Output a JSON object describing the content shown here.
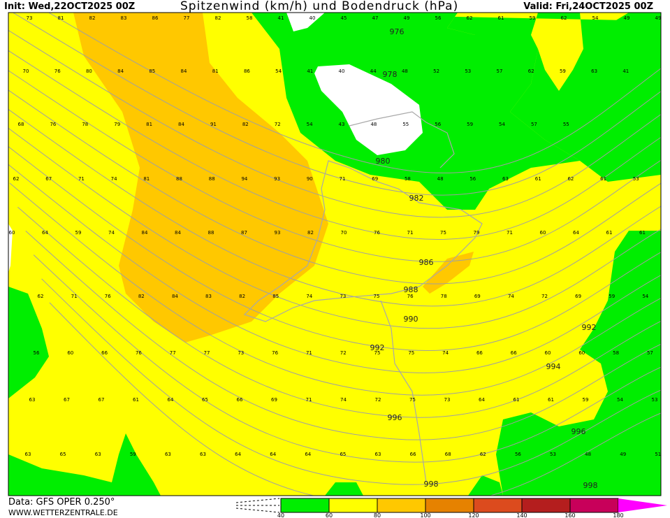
{
  "header": {
    "init": "Init: Wed,22OCT2025 00Z",
    "title": "Spitzenwind (km/h) und Bodendruck (hPa)",
    "valid": "Valid: Fri,24OCT2025 00Z"
  },
  "footer": {
    "data_source": "Data: GFS OPER 0.250°",
    "website": "WWW.WETTERZENTRALE.DE"
  },
  "legend": {
    "ticks": [
      "40",
      "60",
      "80",
      "100",
      "120",
      "140",
      "160",
      "180"
    ],
    "colors": [
      "#00ee00",
      "#ffff00",
      "#ffc800",
      "#e68200",
      "#dc4b1e",
      "#b41e1e",
      "#c8005a",
      "#ff00ff"
    ]
  },
  "map": {
    "colors": {
      "calm": "#ffffff",
      "green": "#00ee00",
      "yellow": "#ffff00",
      "orange": "#ffc800",
      "dark_orange": "#f0a000",
      "isobar": "#a0a0a0"
    },
    "wind_rows": [
      [
        "73",
        "81",
        "82",
        "83",
        "86",
        "77",
        "82",
        "58",
        "41",
        "40",
        "45",
        "47",
        "49",
        "56",
        "62",
        "61",
        "59",
        "62",
        "54",
        "49",
        "49"
      ],
      [
        "70",
        "76",
        "80",
        "84",
        "85",
        "84",
        "81",
        "86",
        "54",
        "41",
        "40",
        "44",
        "48",
        "52",
        "53",
        "57",
        "62",
        "59",
        "63",
        "41"
      ],
      [
        "68",
        "76",
        "78",
        "79",
        "81",
        "84",
        "91",
        "82",
        "72",
        "54",
        "43",
        "48",
        "55",
        "56",
        "59",
        "54",
        "57",
        "55"
      ],
      [
        "62",
        "67",
        "71",
        "74",
        "81",
        "88",
        "88",
        "94",
        "93",
        "90",
        "71",
        "69",
        "58",
        "48",
        "56",
        "63",
        "61",
        "62",
        "61",
        "53"
      ],
      [
        "60",
        "64",
        "59",
        "74",
        "84",
        "84",
        "88",
        "87",
        "93",
        "82",
        "70",
        "76",
        "71",
        "75",
        "79",
        "71",
        "60",
        "64",
        "61",
        "61"
      ],
      [
        "62",
        "71",
        "76",
        "82",
        "84",
        "83",
        "82",
        "85",
        "74",
        "73",
        "75",
        "76",
        "78",
        "69",
        "74",
        "72",
        "69",
        "59",
        "54"
      ],
      [
        "56",
        "60",
        "66",
        "76",
        "77",
        "77",
        "73",
        "76",
        "71",
        "72",
        "75",
        "75",
        "74",
        "66",
        "66",
        "60",
        "60",
        "58",
        "57"
      ],
      [
        "63",
        "67",
        "67",
        "61",
        "64",
        "65",
        "66",
        "69",
        "71",
        "74",
        "72",
        "75",
        "73",
        "64",
        "61",
        "61",
        "59",
        "54",
        "53"
      ],
      [
        "63",
        "65",
        "63",
        "59",
        "63",
        "63",
        "64",
        "64",
        "64",
        "65",
        "63",
        "66",
        "68",
        "62",
        "56",
        "53",
        "48",
        "49",
        "51"
      ]
    ],
    "isobar_labels": [
      "976",
      "978",
      "980",
      "982",
      "986",
      "988",
      "990",
      "992",
      "992",
      "994",
      "996",
      "996",
      "998",
      "998"
    ]
  }
}
